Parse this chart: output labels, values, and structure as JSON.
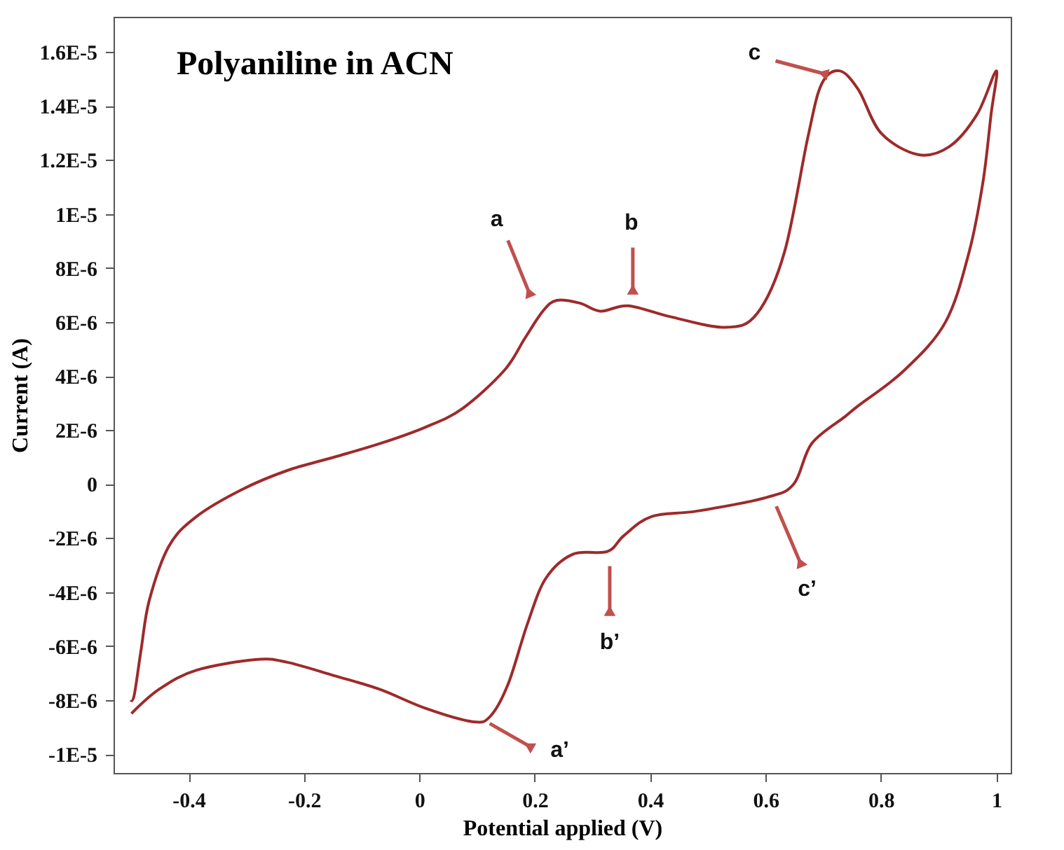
{
  "chart_data": {
    "type": "line",
    "title": "Polyaniline in ACN",
    "xlabel": "Potential applied (V)",
    "ylabel": "Current (A)",
    "x": [
      -0.5,
      -0.494,
      -0.482,
      -0.468,
      -0.434,
      -0.386,
      -0.307,
      -0.229,
      -0.147,
      -0.068,
      0.01,
      0.075,
      0.147,
      0.183,
      0.214,
      0.238,
      0.278,
      0.314,
      0.362,
      0.434,
      0.53,
      0.585,
      0.633,
      0.673,
      0.697,
      0.728,
      0.761,
      0.8,
      0.864,
      0.919,
      0.967,
      1.0,
      0.991,
      0.977,
      0.953,
      0.912,
      0.84,
      0.761,
      0.738,
      0.68,
      0.649,
      0.601,
      0.482,
      0.403,
      0.355,
      0.326,
      0.266,
      0.219,
      0.187,
      0.154,
      0.123,
      0.092,
      0.01,
      -0.069,
      -0.147,
      -0.229,
      -0.284,
      -0.387,
      -0.451,
      -0.499
    ],
    "series": [
      {
        "color": "#9e2a2b",
        "values": [
          -8e-06,
          -7.8e-06,
          -6.1e-06,
          -4.3e-06,
          -2.3e-06,
          -1.2e-06,
          -2e-07,
          5e-07,
          1e-06,
          1.5e-06,
          2.1e-06,
          2.8e-06,
          4.2e-06,
          5.4e-06,
          6.4e-06,
          6.8e-06,
          6.7e-06,
          6.4e-06,
          6.6e-06,
          6.2e-06,
          5.8e-06,
          6.3e-06,
          8.6e-06,
          1.28e-05,
          1.48e-05,
          1.53e-05,
          1.46e-05,
          1.3e-05,
          1.22e-05,
          1.25e-05,
          1.37e-05,
          1.53e-05,
          1.37e-05,
          1.12e-05,
          8.6e-06,
          6e-06,
          4.2e-06,
          2.9e-06,
          2.5e-06,
          1.5e-06,
          0.0,
          -5e-07,
          -1e-06,
          -1.2e-06,
          -1.9e-06,
          -2.5e-06,
          -2.6e-06,
          -3.5e-06,
          -5.2e-06,
          -7.4e-06,
          -8.6e-06,
          -8.8e-06,
          -8.3e-06,
          -7.6e-06,
          -7.1e-06,
          -6.6e-06,
          -6.5e-06,
          -6.9e-06,
          -7.6e-06,
          -8.5e-06
        ]
      }
    ],
    "xlim": [
      -0.53,
      1.025
    ],
    "ylim": [
      -1.07e-05,
      1.73e-05
    ],
    "xticks": [
      -0.4,
      -0.2,
      0,
      0.2,
      0.4,
      0.6,
      0.8,
      1
    ],
    "yticks": [
      {
        "value": -1e-05,
        "label": "-1E-5"
      },
      {
        "value": -8e-06,
        "label": "-8E-6"
      },
      {
        "value": -6e-06,
        "label": "-6E-6"
      },
      {
        "value": -4e-06,
        "label": "-4E-6"
      },
      {
        "value": -2e-06,
        "label": "-2E-6"
      },
      0,
      {
        "value": 2e-06,
        "label": "2E-6"
      },
      {
        "value": 4e-06,
        "label": "4E-6"
      },
      {
        "value": 6e-06,
        "label": "6E-6"
      },
      {
        "value": 8e-06,
        "label": "8E-6"
      },
      {
        "value": 1e-05,
        "label": "1E-5"
      },
      {
        "value": 1.2e-05,
        "label": "1.2E-5"
      },
      {
        "value": 1.4e-05,
        "label": "1.4E-5"
      },
      {
        "value": 1.6e-05,
        "label": "1.6E-5"
      }
    ],
    "annotations": [
      {
        "text": "a",
        "x": 0.19,
        "y": 7.1e-06
      },
      {
        "text": "b",
        "x": 0.37,
        "y": 7.2e-06
      },
      {
        "text": "c",
        "x": 0.7,
        "y": 1.52e-05
      },
      {
        "text": "a’",
        "x": 0.19,
        "y": -9.7e-06
      },
      {
        "text": "b’",
        "x": 0.33,
        "y": -4.7e-06
      },
      {
        "text": "c’",
        "x": 0.66,
        "y": -2.9e-06
      }
    ],
    "grid": false,
    "marker": "none",
    "line_style": "solid"
  }
}
